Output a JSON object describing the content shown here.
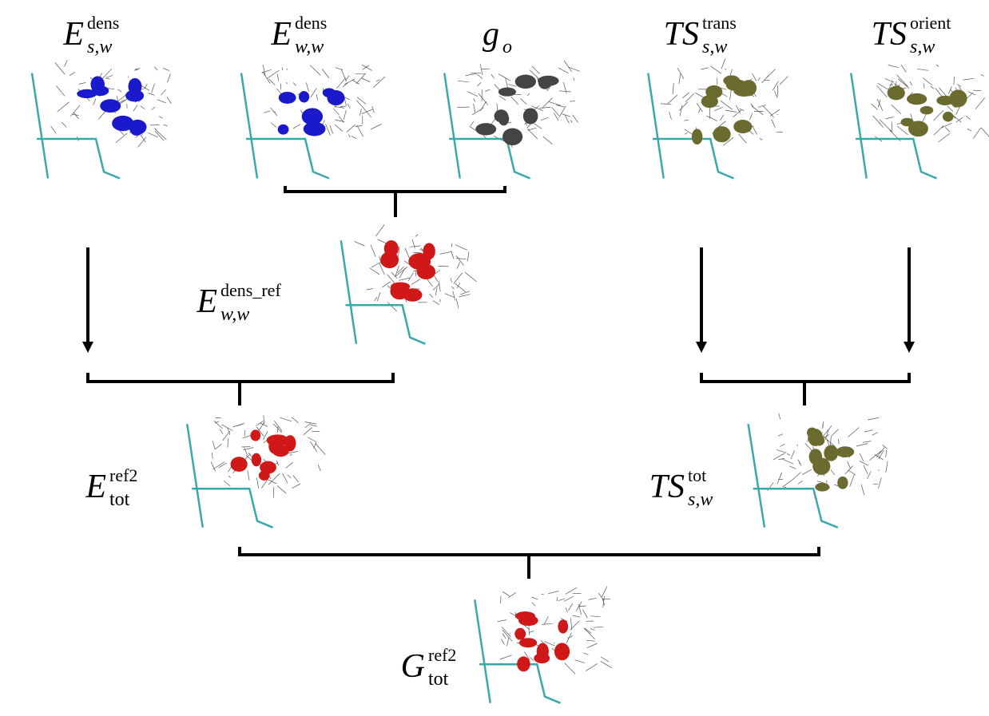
{
  "nodes": [
    {
      "base": "E",
      "sup": "dens",
      "sub": "s,w"
    },
    {
      "base": "E",
      "sup": "dens",
      "sub": "w,w"
    },
    {
      "base": "g",
      "sub": "o"
    },
    {
      "base": "TS",
      "sup": "trans",
      "sub": "s,w"
    },
    {
      "base": "TS",
      "sup": "orient",
      "sub": "s,w"
    },
    {
      "base": "E",
      "sup": "dens_ref",
      "sub": "w,w"
    },
    {
      "base": "E",
      "sup": "ref2",
      "sub": "tot"
    },
    {
      "base": "TS",
      "sup": "tot",
      "sub": "s,w"
    },
    {
      "base": "G",
      "sup": "ref2",
      "sub": "tot"
    }
  ]
}
